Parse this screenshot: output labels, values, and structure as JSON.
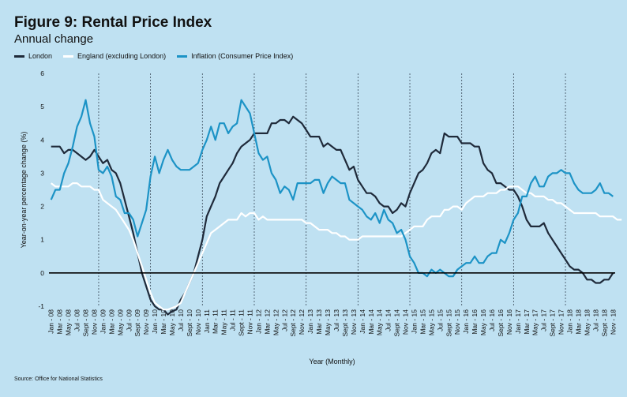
{
  "chart_data": {
    "type": "line",
    "title": "Figure 9: Rental Price Index",
    "subtitle": "Annual change",
    "xlabel": "Year (Monthly)",
    "ylabel": "Year-on-year percentage change (%)",
    "ylim": [
      -1,
      6
    ],
    "yticks": [
      "-1",
      "0",
      "1",
      "2",
      "3",
      "4",
      "5",
      "6"
    ],
    "legend_position": "top-left",
    "grid": "vertical dashed at each January",
    "x_tick_labels": [
      "Jan - 08",
      "Mar - 08",
      "May - 08",
      "Jul - 08",
      "Sept - 08",
      "Nov - 08",
      "Jan - 09",
      "Mar - 09",
      "May - 09",
      "Jul - 09",
      "Sept - 09",
      "Nov - 09",
      "Jan - 10",
      "Mar - 10",
      "May - 10",
      "Jul - 10",
      "Sept - 10",
      "Nov - 10",
      "Jan - 11",
      "Mar - 11",
      "May - 11",
      "Jul - 11",
      "Sept - 11",
      "Nov - 11",
      "Jan - 12",
      "Mar - 12",
      "May - 12",
      "Jul - 12",
      "Sept - 12",
      "Nov - 12",
      "Jan - 13",
      "Mar - 13",
      "May - 13",
      "Jul - 13",
      "Sept - 13",
      "Nov - 13",
      "Jan - 14",
      "Mar - 14",
      "May - 14",
      "Jul - 14",
      "Sept - 14",
      "Nov - 14",
      "Jan - 15",
      "Mar - 15",
      "May - 15",
      "Jul - 15",
      "Sept - 15",
      "Nov - 15",
      "Jan - 16",
      "Mar - 16",
      "May - 16",
      "Jul - 16",
      "Sept - 16",
      "Nov - 16",
      "Jan - 17",
      "Mar - 17",
      "May - 17",
      "Jul - 17",
      "Sept - 17",
      "Nov - 17",
      "Jan - 18",
      "Mar - 18",
      "May - 18",
      "Jul - 18",
      "Sept - 18",
      "Nov - 18"
    ],
    "series": [
      {
        "name": "London",
        "color": "#1f2a3a",
        "values": [
          3.8,
          3.8,
          3.8,
          3.6,
          3.7,
          3.7,
          3.6,
          3.5,
          3.4,
          3.5,
          3.7,
          3.5,
          3.3,
          3.4,
          3.1,
          3.0,
          2.7,
          2.2,
          1.7,
          1.2,
          0.6,
          0.0,
          -0.4,
          -0.8,
          -1.0,
          -1.1,
          -1.1,
          -1.25,
          -1.15,
          -1.1,
          -0.8,
          -0.6,
          -0.3,
          0.0,
          0.5,
          1.0,
          1.7,
          2.0,
          2.3,
          2.7,
          2.9,
          3.1,
          3.3,
          3.6,
          3.8,
          3.9,
          4.0,
          4.2,
          4.2,
          4.2,
          4.2,
          4.5,
          4.5,
          4.6,
          4.6,
          4.5,
          4.7,
          4.6,
          4.5,
          4.3,
          4.1,
          4.1,
          4.1,
          3.8,
          3.9,
          3.8,
          3.7,
          3.7,
          3.4,
          3.1,
          3.2,
          2.8,
          2.6,
          2.4,
          2.4,
          2.3,
          2.1,
          2.0,
          2.0,
          1.8,
          1.9,
          2.1,
          2.0,
          2.4,
          2.7,
          3.0,
          3.1,
          3.3,
          3.6,
          3.7,
          3.6,
          4.2,
          4.1,
          4.1,
          4.1,
          3.9,
          3.9,
          3.9,
          3.8,
          3.8,
          3.3,
          3.1,
          3.0,
          2.7,
          2.7,
          2.6,
          2.5,
          2.5,
          2.3,
          2.0,
          1.6,
          1.4,
          1.4,
          1.4,
          1.5,
          1.2,
          1.0,
          0.8,
          0.6,
          0.4,
          0.2,
          0.1,
          0.1,
          0.0,
          -0.2,
          -0.2,
          -0.3,
          -0.3,
          -0.2,
          -0.2,
          0.0
        ]
      },
      {
        "name": "England (excluding London)",
        "color": "#ffffff",
        "values": [
          2.7,
          2.6,
          2.6,
          2.6,
          2.6,
          2.7,
          2.7,
          2.6,
          2.6,
          2.6,
          2.5,
          2.5,
          2.2,
          2.1,
          2.0,
          1.9,
          1.7,
          1.5,
          1.3,
          1.0,
          0.6,
          0.2,
          -0.2,
          -0.6,
          -0.9,
          -1.0,
          -1.1,
          -1.1,
          -1.05,
          -1.0,
          -0.9,
          -0.6,
          -0.3,
          0.0,
          0.3,
          0.6,
          0.9,
          1.2,
          1.3,
          1.4,
          1.5,
          1.6,
          1.6,
          1.6,
          1.8,
          1.7,
          1.8,
          1.8,
          1.6,
          1.7,
          1.6,
          1.6,
          1.6,
          1.6,
          1.6,
          1.6,
          1.6,
          1.6,
          1.6,
          1.5,
          1.5,
          1.4,
          1.3,
          1.3,
          1.3,
          1.2,
          1.2,
          1.1,
          1.1,
          1.0,
          1.0,
          1.0,
          1.1,
          1.1,
          1.1,
          1.1,
          1.1,
          1.1,
          1.1,
          1.1,
          1.1,
          1.1,
          1.2,
          1.3,
          1.4,
          1.4,
          1.4,
          1.6,
          1.7,
          1.7,
          1.7,
          1.9,
          1.9,
          2.0,
          2.0,
          1.9,
          2.1,
          2.2,
          2.3,
          2.3,
          2.3,
          2.4,
          2.4,
          2.4,
          2.5,
          2.5,
          2.6,
          2.6,
          2.6,
          2.5,
          2.4,
          2.4,
          2.3,
          2.3,
          2.3,
          2.2,
          2.2,
          2.1,
          2.1,
          2.0,
          1.9,
          1.8,
          1.8,
          1.8,
          1.8,
          1.8,
          1.8,
          1.7,
          1.7,
          1.7,
          1.7,
          1.6,
          1.6
        ]
      },
      {
        "name": "Inflation (Consumer Price Index)",
        "color": "#1c93c6",
        "values": [
          2.2,
          2.5,
          2.5,
          3.0,
          3.3,
          3.8,
          4.4,
          4.7,
          5.2,
          4.5,
          4.1,
          3.1,
          3.0,
          3.2,
          2.9,
          2.3,
          2.2,
          1.8,
          1.8,
          1.6,
          1.1,
          1.5,
          1.9,
          2.9,
          3.5,
          3.0,
          3.4,
          3.7,
          3.4,
          3.2,
          3.1,
          3.1,
          3.1,
          3.2,
          3.3,
          3.7,
          4.0,
          4.4,
          4.0,
          4.5,
          4.5,
          4.2,
          4.4,
          4.5,
          5.2,
          5.0,
          4.8,
          4.2,
          3.6,
          3.4,
          3.5,
          3.0,
          2.8,
          2.4,
          2.6,
          2.5,
          2.2,
          2.7,
          2.7,
          2.7,
          2.7,
          2.8,
          2.8,
          2.4,
          2.7,
          2.9,
          2.8,
          2.7,
          2.7,
          2.2,
          2.1,
          2.0,
          1.9,
          1.7,
          1.6,
          1.8,
          1.5,
          1.9,
          1.6,
          1.5,
          1.2,
          1.3,
          1.0,
          0.5,
          0.3,
          0.0,
          0.0,
          -0.1,
          0.1,
          0.0,
          0.1,
          0.0,
          -0.1,
          -0.1,
          0.1,
          0.2,
          0.3,
          0.3,
          0.5,
          0.3,
          0.3,
          0.5,
          0.6,
          0.6,
          1.0,
          0.9,
          1.2,
          1.6,
          1.8,
          2.3,
          2.3,
          2.7,
          2.9,
          2.6,
          2.6,
          2.9,
          3.0,
          3.0,
          3.1,
          3.0,
          3.0,
          2.7,
          2.5,
          2.4,
          2.4,
          2.4,
          2.5,
          2.7,
          2.4,
          2.4,
          2.3
        ]
      }
    ]
  },
  "source": "Source: Office for National Statistics"
}
